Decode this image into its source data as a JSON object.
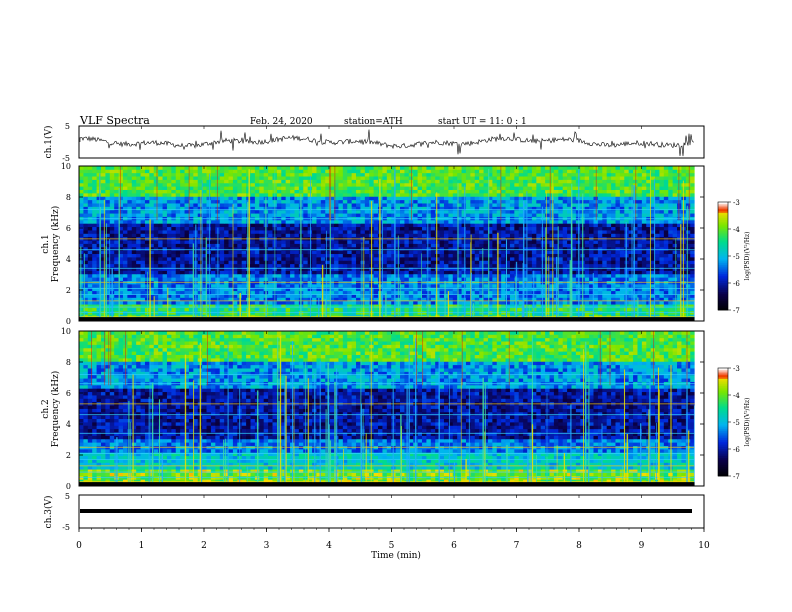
{
  "header": {
    "title": "VLF Spectra",
    "date": "Feb. 24, 2020",
    "station": "station=ATH",
    "start_ut": "start UT = 11: 0 : 1"
  },
  "chart_data": {
    "type": "heatmap",
    "x_axis": {
      "label": "Time (min)",
      "range": [
        0,
        10
      ],
      "ticks": [
        "0",
        "1",
        "2",
        "3",
        "4",
        "5",
        "6",
        "7",
        "8",
        "9",
        "10"
      ]
    },
    "panels": [
      {
        "id": "ch1-waveform",
        "type": "line",
        "ylabel": "ch.1(V)",
        "ylim": [
          -5,
          5
        ],
        "yticks": [
          "5",
          "-5"
        ],
        "baseline": 0
      },
      {
        "id": "ch1-spectrogram",
        "type": "heatmap",
        "ylabel_line1": "ch.1",
        "ylabel_line2": "Frequency (kHz)",
        "ylim": [
          0,
          10
        ],
        "yticks": [
          "0",
          "2",
          "4",
          "6",
          "8",
          "10"
        ],
        "colorbar": {
          "label": "log(PSD)(V²/Hz)",
          "range": [
            -7,
            -3
          ],
          "ticks": [
            "-3",
            "-4",
            "-5",
            "-6",
            "-7"
          ]
        }
      },
      {
        "id": "ch2-spectrogram",
        "type": "heatmap",
        "ylabel_line1": "ch.2",
        "ylabel_line2": "Frequency (kHz)",
        "ylim": [
          0,
          10
        ],
        "yticks": [
          "0",
          "2",
          "4",
          "6",
          "8",
          "10"
        ],
        "colorbar": {
          "label": "log(PSD)(V²/Hz)",
          "range": [
            -7,
            -3
          ],
          "ticks": [
            "-3",
            "-4",
            "-5",
            "-6",
            "-7"
          ]
        }
      },
      {
        "id": "ch3-waveform",
        "type": "line",
        "ylabel": "ch.3(V)",
        "ylim": [
          -5,
          5
        ],
        "yticks": [
          "5",
          "-5"
        ],
        "baseline": 0
      }
    ],
    "data_end_min": 9.85
  }
}
